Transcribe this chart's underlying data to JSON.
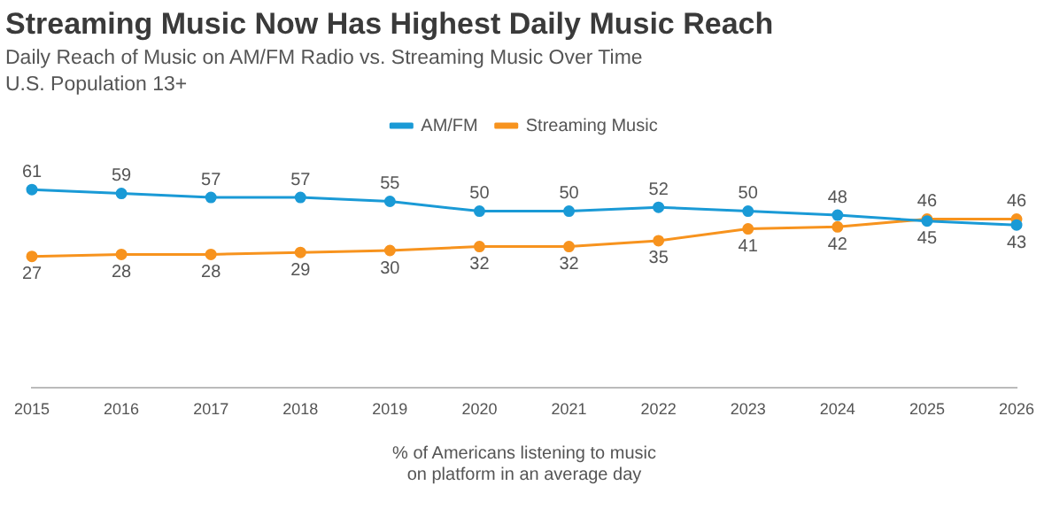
{
  "chart_data": {
    "type": "line",
    "title": "Streaming Music Now Has Highest Daily Music Reach",
    "subtitle": "Daily Reach of Music on AM/FM Radio vs. Streaming Music Over Time\nU.S. Population 13+",
    "xlabel": "% of Americans listening to music\non platform in an average day",
    "categories": [
      "2015",
      "2016",
      "2017",
      "2018",
      "2019",
      "2020",
      "2021",
      "2022",
      "2023",
      "2024",
      "2025",
      "2026"
    ],
    "series": [
      {
        "name": "AM/FM",
        "color": "#1a9ad6",
        "values": [
          61,
          59,
          57,
          57,
          55,
          50,
          50,
          52,
          50,
          48,
          45,
          43
        ]
      },
      {
        "name": "Streaming Music",
        "color": "#f7931e",
        "values": [
          27,
          28,
          28,
          29,
          30,
          32,
          32,
          35,
          41,
          42,
          46,
          46
        ]
      }
    ],
    "tick_labels": "x",
    "grid": false,
    "legend": "top",
    "marker": "circle",
    "line_style": "solid",
    "data_labels": true
  }
}
